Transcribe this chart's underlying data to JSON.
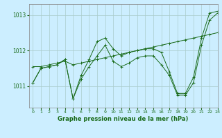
{
  "title": "Graphe pression niveau de la mer (hPa)",
  "bg_color": "#cceeff",
  "line_color": "#1a6b1a",
  "grid_color": "#aacccc",
  "xlim": [
    -0.5,
    23
  ],
  "ylim": [
    1010.4,
    1013.3
  ],
  "yticks": [
    1011,
    1012,
    1013
  ],
  "xticks": [
    0,
    1,
    2,
    3,
    4,
    5,
    6,
    7,
    8,
    9,
    10,
    11,
    12,
    13,
    14,
    15,
    16,
    17,
    18,
    19,
    20,
    21,
    22,
    23
  ],
  "series": [
    [
      1011.1,
      1011.5,
      1011.55,
      1011.6,
      1011.75,
      1010.65,
      1011.3,
      1011.75,
      1012.25,
      1012.35,
      1012.05,
      1011.85,
      1011.95,
      1012.0,
      1012.05,
      1012.05,
      1011.95,
      1011.4,
      1010.8,
      1010.8,
      1011.25,
      1012.35,
      1013.05,
      1013.1
    ],
    [
      1011.55,
      1011.55,
      1011.6,
      1011.65,
      1011.7,
      1011.6,
      1011.65,
      1011.7,
      1011.75,
      1011.8,
      1011.85,
      1011.9,
      1011.95,
      1012.0,
      1012.05,
      1012.1,
      1012.15,
      1012.2,
      1012.25,
      1012.3,
      1012.35,
      1012.4,
      1012.45,
      1012.5
    ],
    [
      1011.1,
      1011.5,
      1011.55,
      1011.6,
      1011.75,
      1010.65,
      1011.2,
      1011.55,
      1011.85,
      1012.15,
      1011.7,
      1011.55,
      1011.65,
      1011.8,
      1011.85,
      1011.85,
      1011.6,
      1011.3,
      1010.75,
      1010.75,
      1011.1,
      1012.15,
      1012.85,
      1013.05
    ]
  ]
}
